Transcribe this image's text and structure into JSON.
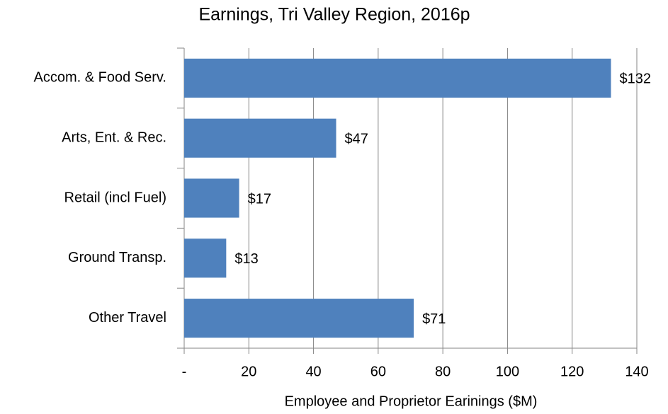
{
  "chart_data": {
    "type": "bar",
    "orientation": "horizontal",
    "title": "Earnings, Tri Valley Region, 2016p",
    "x_label": "Employee and Proprietor Earinings ($M)",
    "categories": [
      "Accom. & Food Serv.",
      "Arts, Ent. & Rec.",
      "Retail (incl Fuel)",
      "Ground Transp.",
      "Other Travel"
    ],
    "values": [
      132,
      47,
      17,
      13,
      71
    ],
    "value_labels": [
      "$132",
      "$47",
      "$17",
      "$13",
      "$71"
    ],
    "color": "#4f81bd",
    "xlim": [
      0,
      140
    ],
    "xticks": [
      {
        "value": 0,
        "label": "-"
      },
      20,
      40,
      60,
      80,
      100,
      120,
      140
    ],
    "grid": true
  }
}
